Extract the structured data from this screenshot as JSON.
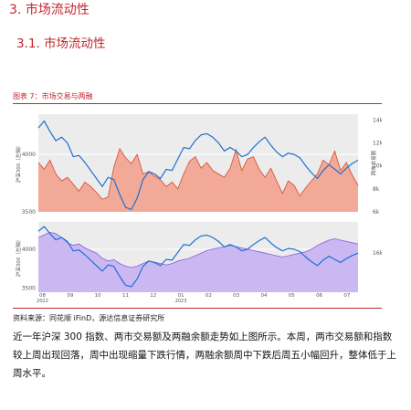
{
  "header": {
    "section_title": "3. 市场流动性",
    "subsection_title": "3.1. 市场流动性"
  },
  "figure": {
    "caption": "图表 7：市场交易与两融",
    "source": "资料来源：同花顺 iFinD，源达信息证券研究所"
  },
  "body_text": "近一年沪深 300 指数、两市交易额及两融余额走势如上图所示。本周，两市交易额和指数较上周出现回落，周中出现缩量下跌行情，两融余额周中下跌后周五小幅回升，整体低于上周水平。",
  "colors": {
    "accent": "#c0262d",
    "index_line": "#1f6fd1",
    "turnover_fill": "#f2a593",
    "turnover_line": "#d6492f",
    "margin_fill": "#c9b5f2",
    "margin_line": "#8a5ae0",
    "plot_bg": "#ececec"
  },
  "chart_data": [
    {
      "type": "area",
      "panel": "top",
      "xlabel": "",
      "ylabel": "沪深300（左轴）",
      "y2label": "两市交易额",
      "ylim": [
        3500,
        4350
      ],
      "y2lim": [
        6000,
        14500
      ],
      "yticks": [
        "4000",
        "3500"
      ],
      "y2ticks": [
        "14k",
        "12k",
        "10k",
        "8k",
        "6k"
      ],
      "x_ticks": [
        "08",
        "09",
        "10",
        "11",
        "12",
        "01",
        "02",
        "03",
        "04",
        "05",
        "06",
        "07"
      ],
      "x_year_labels": [
        {
          "after": "08",
          "label": "2022"
        },
        {
          "after": "01",
          "label": "2023"
        }
      ],
      "x_month_index": [
        0,
        1,
        2,
        3,
        4,
        5,
        6,
        7,
        8,
        9,
        10,
        11
      ],
      "series": [
        {
          "role": "index",
          "axis": "left",
          "values": [
            4230,
            4290,
            4200,
            4120,
            4150,
            4100,
            3980,
            3990,
            3930,
            3860,
            3790,
            3720,
            3800,
            3780,
            3650,
            3540,
            3520,
            3620,
            3780,
            3850,
            3830,
            3790,
            3870,
            3860,
            3960,
            4060,
            4050,
            4120,
            4170,
            4180,
            4150,
            4100,
            4030,
            4060,
            4030,
            3980,
            4000,
            4060,
            4110,
            4150,
            4080,
            4020,
            3980,
            4010,
            4000,
            3970,
            3900,
            3840,
            3790,
            3860,
            3910,
            3870,
            3830,
            3880,
            3920,
            3950
          ]
        },
        {
          "role": "turnover",
          "axis": "right",
          "values": [
            10300,
            9700,
            10500,
            9300,
            8700,
            9000,
            8400,
            7800,
            8600,
            8200,
            7700,
            7100,
            7300,
            9900,
            11500,
            10700,
            10200,
            11000,
            9300,
            9500,
            9100,
            8800,
            8200,
            8600,
            8000,
            9300,
            10400,
            10800,
            9800,
            10300,
            9600,
            9300,
            9000,
            9800,
            11400,
            9600,
            10600,
            10800,
            9700,
            9000,
            9800,
            8700,
            7600,
            8700,
            8300,
            7400,
            8100,
            8700,
            9300,
            10500,
            10100,
            11300,
            9600,
            10300,
            9200,
            8300
          ]
        }
      ]
    },
    {
      "type": "area",
      "panel": "bottom",
      "xlabel": "",
      "ylabel": "沪深300（左轴）",
      "y2label": "",
      "ylim": [
        3450,
        4350
      ],
      "y2lim": [
        14500,
        17200
      ],
      "yticks": [
        "4000",
        "3500"
      ],
      "y2ticks": [
        "16k"
      ],
      "series": [
        {
          "role": "index",
          "axis": "left",
          "values": [
            4230,
            4290,
            4200,
            4120,
            4150,
            4100,
            3980,
            3990,
            3930,
            3860,
            3790,
            3720,
            3800,
            3780,
            3650,
            3540,
            3520,
            3620,
            3780,
            3850,
            3830,
            3790,
            3870,
            3860,
            3960,
            4060,
            4050,
            4120,
            4170,
            4180,
            4150,
            4100,
            4030,
            4060,
            4030,
            3980,
            4000,
            4060,
            4110,
            4150,
            4080,
            4020,
            3980,
            4010,
            4000,
            3970,
            3900,
            3840,
            3790,
            3860,
            3910,
            3870,
            3830,
            3880,
            3920,
            3950
          ]
        },
        {
          "role": "margin",
          "axis": "right",
          "values": [
            16600,
            16700,
            16800,
            16750,
            16600,
            16400,
            16300,
            16350,
            16200,
            16100,
            16000,
            15800,
            15700,
            15750,
            15600,
            15500,
            15450,
            15500,
            15600,
            15700,
            15650,
            15600,
            15550,
            15600,
            15700,
            15750,
            15800,
            15900,
            16000,
            16100,
            16150,
            16200,
            16250,
            16300,
            16250,
            16200,
            16150,
            16100,
            16050,
            16000,
            15950,
            15900,
            15850,
            15900,
            15950,
            16000,
            16050,
            16150,
            16300,
            16400,
            16500,
            16550,
            16500,
            16450,
            16400,
            16350
          ]
        }
      ]
    }
  ]
}
